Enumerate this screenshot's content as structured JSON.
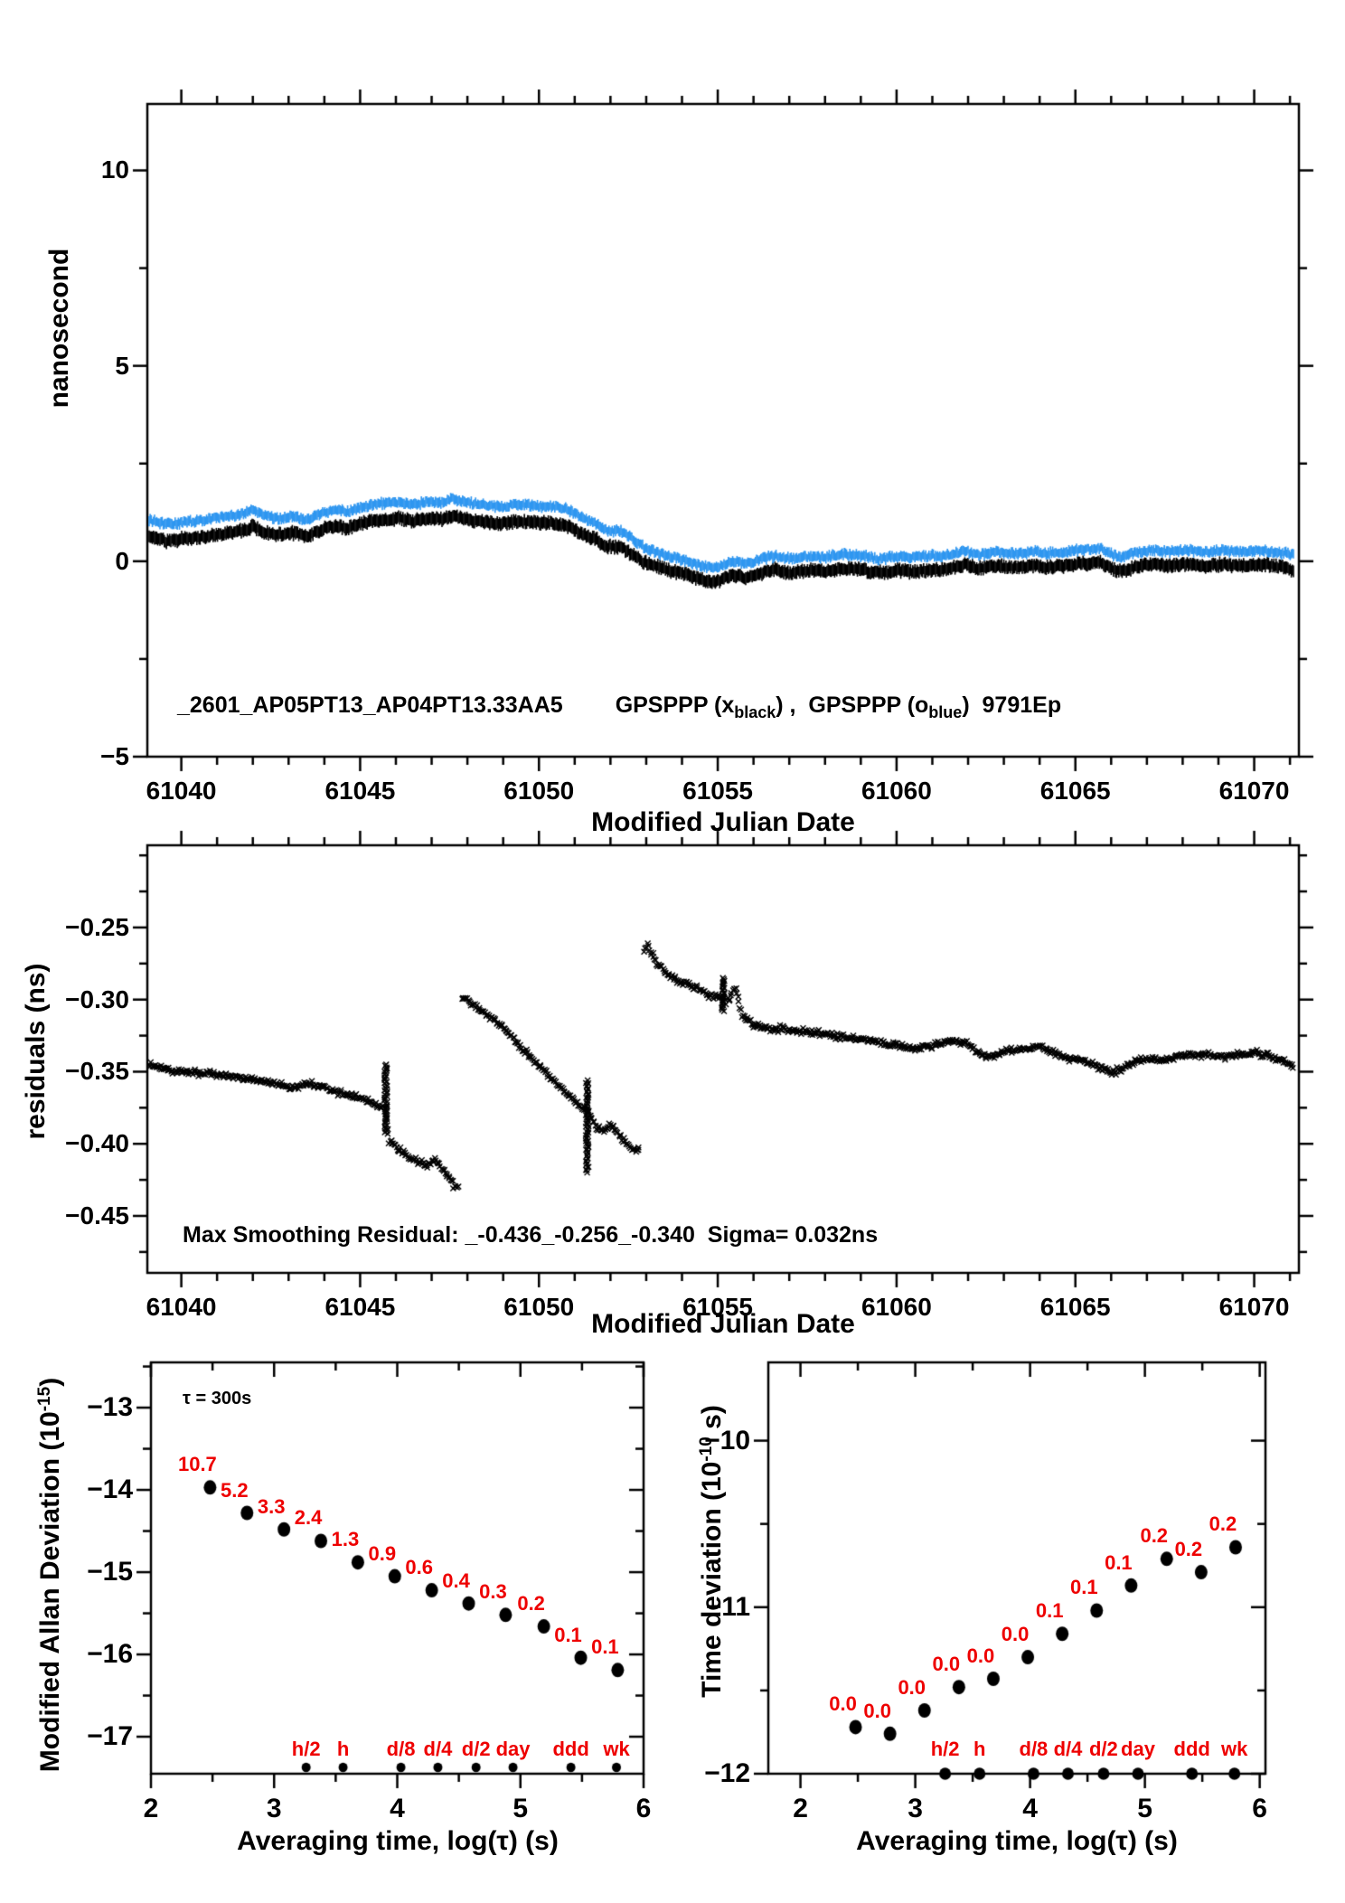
{
  "colors": {
    "black": "#000000",
    "blue": "#2e96f0",
    "red": "#ee0000",
    "axis": "#000000",
    "background": "#ffffff"
  },
  "text": {
    "p1": {
      "y_title": "nanosecond",
      "x_title": "Modified Julian Date",
      "legend_id": "_2601_AP05PT13_AP04PT13.33AA5",
      "legend_s1": "GPSPPP (x",
      "legend_sub1": "black",
      "legend_s2": ") ,  GPSPPP (o",
      "legend_sub2": "blue",
      "legend_s3": ")  9791Ep"
    },
    "p2": {
      "y_title": "residuals (ns)",
      "x_title": "Modified Julian Date",
      "note": "Max Smoothing Residual: _-0.436_-0.256_-0.340  Sigma= 0.032ns"
    },
    "p3": {
      "y_title_pre": "Modified Allan Deviation (10",
      "y_title_sup": "-15",
      "y_title_post": ")",
      "x_title": "Averaging time, log(τ) (s)",
      "annotation": "τ = 300s"
    },
    "p4": {
      "y_title_pre": "Time deviation (10",
      "y_title_sup": "-10",
      "y_title_post": " s)",
      "x_title": "Averaging time, log(τ) (s)"
    }
  },
  "chart_data": [
    {
      "id": "phase-comparison",
      "type": "line",
      "title": "_2601_AP05PT13_AP04PT13.33AA5  GPSPPP (x black), GPSPPP (o blue) 9791Ep",
      "xlabel": "Modified Julian Date",
      "ylabel": "nanosecond",
      "xlim": [
        61039.05,
        61071.25
      ],
      "ylim": [
        -5,
        11.7
      ],
      "x_tick_values": [
        61040,
        61045,
        61050,
        61055,
        61060,
        61065,
        61070
      ],
      "x_tick_labels": [
        "61040",
        "61045",
        "61050",
        "61055",
        "61060",
        "61065",
        "61070"
      ],
      "x_minor_step": 1,
      "y_tick_values": [
        10,
        5,
        0,
        -5
      ],
      "y_tick_labels": [
        "10",
        "5",
        "0",
        "−5"
      ],
      "y_minor_step": 2.5,
      "x": [
        61039.1,
        61039.6,
        61040.1,
        61040.6,
        61041.1,
        61041.6,
        61042.0,
        61042.3,
        61042.7,
        61043.1,
        61043.5,
        61043.9,
        61044.3,
        61044.7,
        61045.1,
        61045.6,
        61046.1,
        61046.5,
        61046.9,
        61047.3,
        61047.6,
        61048.0,
        61048.4,
        61048.9,
        61049.4,
        61049.9,
        61050.4,
        61050.8,
        61051.2,
        61051.6,
        61051.9,
        61052.3,
        61052.6,
        61052.9,
        61053.3,
        61053.7,
        61054.1,
        61054.5,
        61054.9,
        61055.2,
        61055.5,
        61055.8,
        61056.2,
        61056.6,
        61057.0,
        61057.5,
        61058.0,
        61058.5,
        61059.0,
        61059.5,
        61060.0,
        61060.5,
        61061.0,
        61061.5,
        61061.9,
        61062.3,
        61062.8,
        61063.3,
        61063.8,
        61064.3,
        61064.8,
        61065.3,
        61065.7,
        61066.0,
        61066.3,
        61066.7,
        61067.1,
        61067.6,
        61068.1,
        61068.6,
        61069.1,
        61069.6,
        61070.1,
        61070.6,
        61071.1
      ],
      "series": [
        {
          "name": "GPSPPP (x black)",
          "color": "#000000",
          "values": [
            0.66,
            0.52,
            0.58,
            0.62,
            0.7,
            0.76,
            0.88,
            0.76,
            0.68,
            0.73,
            0.62,
            0.8,
            0.9,
            0.86,
            0.98,
            1.06,
            1.1,
            1.02,
            1.1,
            1.07,
            1.17,
            1.07,
            1.01,
            0.97,
            1.02,
            0.99,
            0.97,
            0.9,
            0.7,
            0.56,
            0.38,
            0.36,
            0.18,
            0.0,
            -0.14,
            -0.24,
            -0.34,
            -0.46,
            -0.55,
            -0.44,
            -0.36,
            -0.44,
            -0.3,
            -0.22,
            -0.3,
            -0.24,
            -0.26,
            -0.18,
            -0.22,
            -0.3,
            -0.24,
            -0.26,
            -0.22,
            -0.2,
            -0.08,
            -0.18,
            -0.12,
            -0.16,
            -0.12,
            -0.15,
            -0.1,
            -0.06,
            -0.02,
            -0.18,
            -0.26,
            -0.12,
            -0.08,
            -0.12,
            -0.08,
            -0.12,
            -0.08,
            -0.12,
            -0.08,
            -0.12,
            -0.22
          ]
        },
        {
          "name": "GPSPPP (o blue)",
          "color": "#2e96f0",
          "values": [
            1.05,
            0.95,
            1.0,
            1.05,
            1.12,
            1.18,
            1.3,
            1.18,
            1.1,
            1.15,
            1.05,
            1.22,
            1.32,
            1.28,
            1.4,
            1.48,
            1.52,
            1.45,
            1.53,
            1.5,
            1.6,
            1.5,
            1.44,
            1.4,
            1.45,
            1.42,
            1.4,
            1.33,
            1.12,
            0.98,
            0.78,
            0.76,
            0.58,
            0.38,
            0.22,
            0.12,
            0.02,
            -0.1,
            -0.18,
            -0.08,
            0.0,
            -0.06,
            0.06,
            0.14,
            0.06,
            0.12,
            0.1,
            0.18,
            0.14,
            0.06,
            0.12,
            0.1,
            0.14,
            0.16,
            0.28,
            0.18,
            0.24,
            0.2,
            0.24,
            0.21,
            0.26,
            0.3,
            0.34,
            0.18,
            0.1,
            0.24,
            0.28,
            0.24,
            0.28,
            0.24,
            0.28,
            0.24,
            0.28,
            0.24,
            0.16
          ]
        }
      ]
    },
    {
      "id": "smoothing-residuals",
      "type": "scatter",
      "marker": "x",
      "xlabel": "Modified Julian Date",
      "ylabel": "residuals (ns)",
      "annotation": "Max Smoothing Residual: _-0.436_-0.256_-0.340  Sigma= 0.032ns",
      "xlim": [
        61039.05,
        61071.25
      ],
      "ylim": [
        -0.4895,
        -0.193
      ],
      "x_tick_values": [
        61040,
        61045,
        61050,
        61055,
        61060,
        61065,
        61070
      ],
      "x_tick_labels": [
        "61040",
        "61045",
        "61050",
        "61055",
        "61060",
        "61065",
        "61070"
      ],
      "x_minor_step": 1,
      "y_tick_values": [
        -0.25,
        -0.3,
        -0.35,
        -0.4,
        -0.45
      ],
      "y_tick_labels": [
        "−0.25",
        "−0.30",
        "−0.35",
        "−0.40",
        "−0.45"
      ],
      "y_minor_step": 0.025,
      "segments": [
        {
          "points": [
            [
              61039.1,
              -0.345
            ],
            [
              61039.5,
              -0.348
            ],
            [
              61040.0,
              -0.35
            ],
            [
              61040.5,
              -0.351
            ],
            [
              61041.0,
              -0.352
            ],
            [
              61041.5,
              -0.354
            ],
            [
              61042.0,
              -0.355
            ],
            [
              61042.4,
              -0.357
            ],
            [
              61042.8,
              -0.359
            ],
            [
              61043.2,
              -0.361
            ],
            [
              61043.5,
              -0.358
            ],
            [
              61043.8,
              -0.36
            ],
            [
              61044.2,
              -0.363
            ],
            [
              61044.6,
              -0.366
            ],
            [
              61045.0,
              -0.368
            ],
            [
              61045.4,
              -0.372
            ],
            [
              61045.7,
              -0.376
            ],
            [
              61045.8,
              -0.398
            ],
            [
              61046.0,
              -0.402
            ],
            [
              61046.3,
              -0.408
            ],
            [
              61046.6,
              -0.412
            ],
            [
              61046.9,
              -0.415
            ],
            [
              61047.1,
              -0.411
            ],
            [
              61047.3,
              -0.418
            ],
            [
              61047.5,
              -0.424
            ],
            [
              61047.65,
              -0.43
            ],
            [
              61047.75,
              -0.431
            ]
          ]
        },
        {
          "points": [
            [
              61047.85,
              -0.297
            ],
            [
              61048.1,
              -0.303
            ],
            [
              61048.4,
              -0.308
            ],
            [
              61048.7,
              -0.313
            ],
            [
              61048.95,
              -0.318
            ],
            [
              61049.15,
              -0.323
            ],
            [
              61049.4,
              -0.331
            ],
            [
              61049.65,
              -0.336
            ],
            [
              61049.9,
              -0.343
            ],
            [
              61050.15,
              -0.35
            ],
            [
              61050.4,
              -0.356
            ],
            [
              61050.65,
              -0.362
            ],
            [
              61050.9,
              -0.368
            ],
            [
              61051.15,
              -0.374
            ],
            [
              61051.4,
              -0.379
            ],
            [
              61051.6,
              -0.388
            ],
            [
              61051.8,
              -0.392
            ],
            [
              61052.0,
              -0.386
            ],
            [
              61052.25,
              -0.394
            ],
            [
              61052.5,
              -0.401
            ],
            [
              61052.7,
              -0.405
            ],
            [
              61052.8,
              -0.403
            ]
          ]
        },
        {
          "points": [
            [
              61052.95,
              -0.266
            ],
            [
              61053.05,
              -0.262
            ],
            [
              61053.25,
              -0.273
            ],
            [
              61053.5,
              -0.28
            ],
            [
              61053.8,
              -0.286
            ],
            [
              61054.1,
              -0.289
            ],
            [
              61054.4,
              -0.292
            ],
            [
              61054.7,
              -0.296
            ],
            [
              61055.0,
              -0.298
            ],
            [
              61055.3,
              -0.301
            ],
            [
              61055.5,
              -0.291
            ],
            [
              61055.7,
              -0.312
            ],
            [
              61056.0,
              -0.317
            ],
            [
              61056.4,
              -0.32
            ],
            [
              61056.8,
              -0.32
            ],
            [
              61057.2,
              -0.322
            ],
            [
              61057.6,
              -0.322
            ],
            [
              61058.0,
              -0.324
            ],
            [
              61058.5,
              -0.326
            ],
            [
              61059.0,
              -0.328
            ],
            [
              61059.5,
              -0.33
            ],
            [
              61060.0,
              -0.332
            ],
            [
              61060.5,
              -0.334
            ],
            [
              61061.0,
              -0.332
            ],
            [
              61061.5,
              -0.328
            ],
            [
              61062.0,
              -0.331
            ],
            [
              61062.3,
              -0.338
            ],
            [
              61062.7,
              -0.34
            ],
            [
              61063.0,
              -0.336
            ],
            [
              61063.5,
              -0.334
            ],
            [
              61064.0,
              -0.333
            ],
            [
              61064.5,
              -0.338
            ],
            [
              61065.0,
              -0.342
            ],
            [
              61065.5,
              -0.345
            ],
            [
              61066.0,
              -0.351
            ],
            [
              61066.3,
              -0.348
            ],
            [
              61066.7,
              -0.342
            ],
            [
              61067.0,
              -0.341
            ],
            [
              61067.5,
              -0.342
            ],
            [
              61068.0,
              -0.338
            ],
            [
              61068.5,
              -0.338
            ],
            [
              61069.0,
              -0.34
            ],
            [
              61069.5,
              -0.338
            ],
            [
              61070.0,
              -0.337
            ],
            [
              61070.5,
              -0.34
            ],
            [
              61071.1,
              -0.346
            ]
          ]
        }
      ],
      "spikes": [
        {
          "x": 61045.72,
          "y1": -0.345,
          "y2": -0.392
        },
        {
          "x": 61051.35,
          "y1": -0.356,
          "y2": -0.42
        },
        {
          "x": 61055.15,
          "y1": -0.285,
          "y2": -0.308
        }
      ]
    },
    {
      "id": "modified-allan-deviation",
      "type": "scatter",
      "marker": "circle",
      "xlabel": "Averaging time, log(τ) (s)",
      "ylabel": "Modified Allan Deviation (10^-15)",
      "annotation": "τ = 300s",
      "xlim": [
        2,
        6
      ],
      "ylim": [
        -17.45,
        -12.45
      ],
      "x_tick_values": [
        2,
        3,
        4,
        5,
        6
      ],
      "x_tick_labels": [
        "2",
        "3",
        "4",
        "5",
        "6"
      ],
      "x_minor_step": 0.5,
      "y_tick_values": [
        -13,
        -14,
        -15,
        -16,
        -17
      ],
      "y_tick_labels": [
        "−13",
        "−14",
        "−15",
        "−16",
        "−17"
      ],
      "y_minor_step": 0.5,
      "x": [
        2.48,
        2.78,
        3.08,
        3.38,
        3.68,
        3.98,
        4.28,
        4.58,
        4.88,
        5.19,
        5.49,
        5.79
      ],
      "values": [
        -13.97,
        -14.28,
        -14.48,
        -14.62,
        -14.88,
        -15.05,
        -15.22,
        -15.38,
        -15.52,
        -15.66,
        -16.04,
        -16.19
      ],
      "point_labels": [
        "10.7",
        "5.2",
        "3.3",
        "2.4",
        "1.3",
        "0.9",
        "0.6",
        "0.4",
        "0.3",
        "0.2",
        "0.1",
        "0.1"
      ],
      "tau_markers": {
        "labels": [
          "h/2",
          "h",
          "d/8",
          "d/4",
          "d/2",
          "day",
          "ddd",
          "wk"
        ],
        "log_tau": [
          3.26,
          3.56,
          4.03,
          4.33,
          4.64,
          4.94,
          5.41,
          5.78
        ]
      }
    },
    {
      "id": "time-deviation",
      "type": "scatter",
      "marker": "circle",
      "xlabel": "Averaging time, log(τ) (s)",
      "ylabel": "Time deviation (10^-10 s)",
      "xlim": [
        1.72,
        6.05
      ],
      "ylim": [
        -12,
        -9.53
      ],
      "x_tick_values": [
        2,
        3,
        4,
        5,
        6
      ],
      "x_tick_labels": [
        "2",
        "3",
        "4",
        "5",
        "6"
      ],
      "x_minor_step": 0.5,
      "y_tick_values": [
        -10,
        -11,
        -12
      ],
      "y_tick_labels": [
        "−10",
        "−11",
        "−12"
      ],
      "y_minor_step": 0.5,
      "x": [
        2.48,
        2.78,
        3.08,
        3.38,
        3.68,
        3.98,
        4.28,
        4.58,
        4.88,
        5.19,
        5.49,
        5.79
      ],
      "values": [
        -11.72,
        -11.76,
        -11.62,
        -11.48,
        -11.43,
        -11.3,
        -11.16,
        -11.02,
        -10.87,
        -10.71,
        -10.79,
        -10.64
      ],
      "point_labels": [
        "0.0",
        "0.0",
        "0.0",
        "0.0",
        "0.0",
        "0.0",
        "0.1",
        "0.1",
        "0.1",
        "0.2",
        "0.2",
        "0.2"
      ],
      "tau_markers": {
        "labels": [
          "h/2",
          "h",
          "d/8",
          "d/4",
          "d/2",
          "day",
          "ddd",
          "wk"
        ],
        "log_tau": [
          3.26,
          3.56,
          4.03,
          4.33,
          4.64,
          4.94,
          5.41,
          5.78
        ]
      }
    }
  ]
}
